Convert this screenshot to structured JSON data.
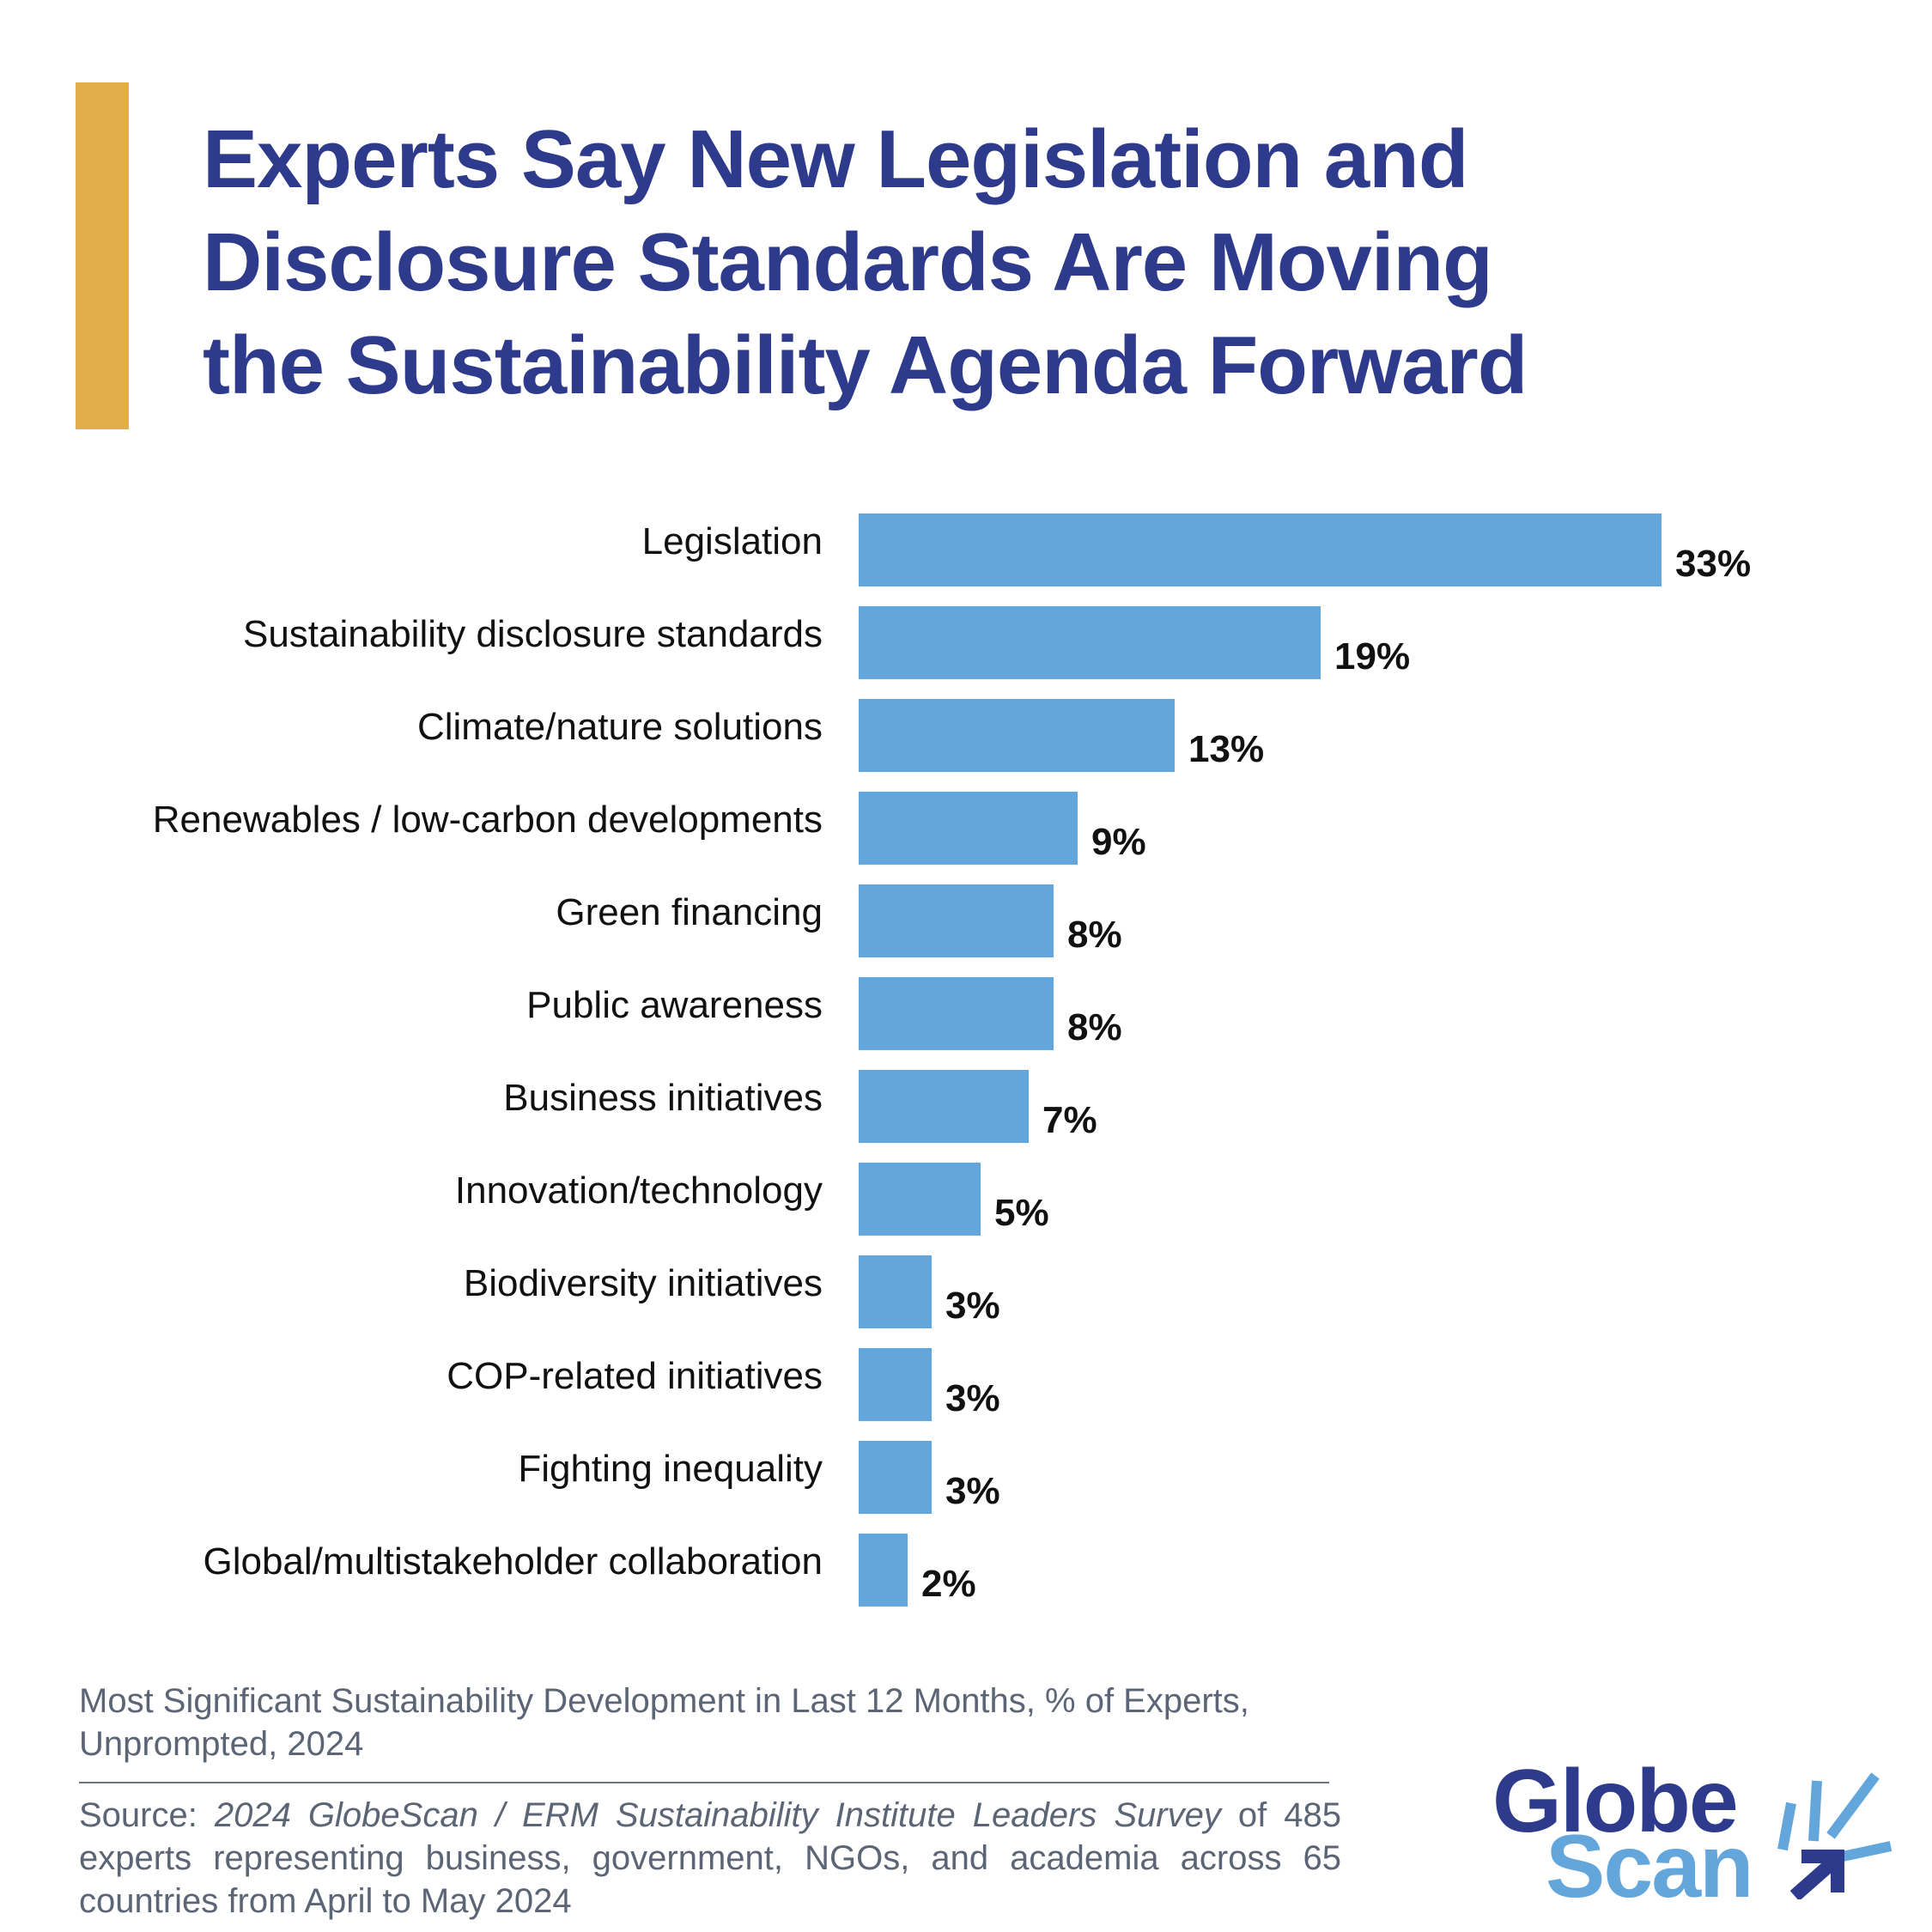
{
  "title": {
    "line1": "Experts Say New Legislation and",
    "line2": "Disclosure Standards Are Moving",
    "line3": "the Sustainability Agenda Forward"
  },
  "chart_data": {
    "type": "bar",
    "orientation": "horizontal",
    "categories": [
      "Legislation",
      "Sustainability disclosure standards",
      "Climate/nature solutions",
      "Renewables / low-carbon developments",
      "Green financing",
      "Public awareness",
      "Business initiatives",
      "Innovation/technology",
      "Biodiversity initiatives",
      "COP-related initiatives",
      "Fighting inequality",
      "Global/multistakeholder collaboration"
    ],
    "values": [
      33,
      19,
      13,
      9,
      8,
      8,
      7,
      5,
      3,
      3,
      3,
      2
    ],
    "value_labels": [
      "33%",
      "19%",
      "13%",
      "9%",
      "8%",
      "8%",
      "7%",
      "5%",
      "3%",
      "3%",
      "3%",
      "2%"
    ],
    "title": "Experts Say New Legislation and Disclosure Standards Are Moving the Sustainability Agenda Forward",
    "xlabel": "",
    "ylabel": "",
    "xlim": [
      0,
      33
    ],
    "grid": false,
    "bar_color": "#62A6DC"
  },
  "note": {
    "line1": "Most Significant Sustainability Development in Last 12 Months, % of Experts,",
    "line2": "Unprompted, 2024"
  },
  "source": {
    "prefix": "Source: ",
    "survey": "2024 GlobeScan / ERM Sustainability Institute Leaders Survey",
    "rest": " of 485 experts representing business, government, NGOs, and academia across 65 countries from April to May 2024"
  },
  "logo": {
    "word1": "Globe",
    "word2": "Scan"
  },
  "colors": {
    "title": "#2E3A8C",
    "accent": "#E2AE4A",
    "bar": "#62A6DC",
    "logo_dark": "#2E3A8C",
    "logo_light": "#62A6DC"
  }
}
